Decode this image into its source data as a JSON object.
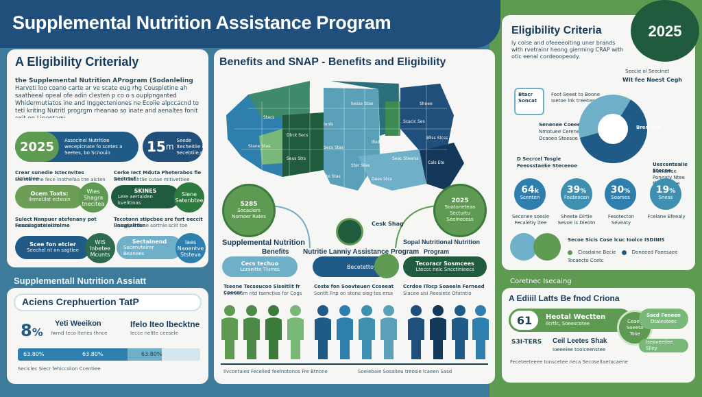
{
  "header": {
    "title": "Supplemental Nutrition Assistance Program"
  },
  "left": {
    "title": "A Eligibility Criterialy",
    "intro_bold": "the Supplemental Nutrition AProgram (Sodanleling",
    "intro": "Harveti loo coano carte ar ve scate eug rhg Couspletine ah saatheeal opeal ofe adin clesten p co o s ouplpnganted Whidermutiatos ine and Inggecteniones ne Ecoiie alpccacnd to teti kriting Nutritl progrgm rheanao so inate and aenaltes fonit exit on Lineotagy.",
    "year": "2025",
    "year_text": "Associnel Nutrltioe wecepicnate fo scetes a Seetes, bo Scnouio",
    "stat": "15",
    "stat_unit": "m",
    "stat_text": "Seede Itecheitlie is Secebtiie,ntine",
    "row1_label": "Crear sunedie Istecnvites ricnetiee",
    "row1_sub": "Solicten the fece lnothefaa tne alcten",
    "row1_right": "Cerke Iect Mduta Pheterabos fie Sectrtuf",
    "row1_right_sub": "wite kecahtlie cutae mitivettiee",
    "pill1": "Ocem Toxts:",
    "pill1_sub": "Ilemetilat ectenin",
    "c1": "Wies Shagra tnecitea",
    "pill2": "SKINES",
    "pill2_sub": "Lere aertaiden kvelitinas",
    "c2": "Siene Satenbtee",
    "row2": "Sulect Nanpuer atefenany pot Feecusgeteieiirolme",
    "row2_sub": "Tucsalie tie leucds",
    "row2_right": "Tecotonn stipcbee sre fert oeccit llnegtaltten",
    "row2_right_sub": "Boragy le fene sortnie sciit toe",
    "pill3": "Scee fon etcler",
    "pill3_sub": "Seechel nt on sagtlee",
    "c3": "WIS Inbetee Mcunts",
    "pill4": "Sectainend",
    "pill4_sub": "Secenvteirer Beanees",
    "c4": "Iaes Naoentve Ststeva"
  },
  "bottom_left": {
    "strip": "Supplementall Nutrition Assiatt",
    "title": "Aciens Crephuertion  TatP",
    "pct": "8",
    "pct_sign": "%",
    "label1": "Yeti  Weeikon",
    "label1_sub": "Iwrnd teco ltenes thnce",
    "label2": "Ifelo Iteo lbecktne",
    "label2_sub": "Iecce neltte ceesele",
    "bar1": "63.80%",
    "bar2": "63.80%",
    "bar3": "63.80%",
    "foot": "Seciclec Siecr fehiccslion Ccentiee"
  },
  "center": {
    "title": "Benefits and SNAP - Benefits and Eligibility",
    "map_labels": [
      "Dlrck Secs",
      "Seus Strs",
      "Stane Stas",
      "Ionls",
      "Secs Stas",
      "Ster Stas",
      "Iiesse Stae",
      "Ilisd",
      "Seac Steerss",
      "Scacic Ses",
      "Shnee",
      "Bllss Stcss",
      "Cals Ete",
      "Stacs",
      "Dees Stcs",
      "Ste Stas"
    ],
    "circle_left_year": "5285",
    "circle_left_text": "Socaclers Nomoer Rates",
    "circle_mid": "Cesk Shag",
    "circle_right_year": "2025",
    "circle_right_text": "Soatoneteaa Secturtu Seeinecess",
    "label_left": "Supplemental Nutrition",
    "label_left2": "Benefits",
    "label_mid": "Nutritie Lanniy Assistance Program",
    "label_right": "Sopal Nutritional Nutrition",
    "label_right2": "Program",
    "pill_left": "Cecs techuo",
    "pill_left_sub": "Loraeitte Tiurres",
    "pill_mid": "Becetettoy",
    "pill_right": "Tecoracr Sosmcees",
    "pill_right_sub": "Lteccc nelc Sncctinieecs",
    "text_left": "Tseone Tecseucoo Siseitlit fr Coecor",
    "text_left_sub": "Sacrotiom ntd tsencties for Cogs",
    "text_mid": "Coste fon Soovteuen Ccoeeat",
    "text_mid_sub": "Sontlt Fnp on stone sieg tes ersa",
    "text_right": "Ccrdoe ITocp Soaeeln Ferneed",
    "text_right_sub": "Siacee sisi Reesiete Ofatntio",
    "foot_left": "Ilvcontaies Fecelled feelnotonos Fre Btnone",
    "foot_right": "Soeiebaie Sosaiteu treosie lcaeen Sasd"
  },
  "right": {
    "title": "Eligibility Criteria",
    "year": "2025",
    "intro": "ly coise and ofeeeeoiting uner brands with rvetrainr heong gierming CRAP with otic eenal cordeoopeody.",
    "legend1": "Seecie ol Seecinet",
    "legend2": "Wit fee Noest Cegh",
    "box_label": "Btacr Soncat",
    "box_text": "Foot Seeet to Boone Ioetoe lnk treeitere Fret",
    "list1": "Senenee Coeeecs",
    "list2": "Nmotuee Cereneis",
    "list3": "Ocaoeo Steesoe",
    "donut_label": "Bren Ose",
    "callout": "Uescenteaiie Stocne",
    "callout2": "Bueisetee Poneaty Ntee ffoo lealsse",
    "d_text": "D Secrcel Tosgle",
    "d_text2": "Feeosstaeke Steceeoe",
    "chart_data": {
      "type": "pie",
      "values": [
        62,
        38
      ],
      "colors": [
        "#1f5b86",
        "#6fb0c8"
      ]
    },
    "stats": [
      {
        "v": "64",
        "u": "k",
        "t": "Scenten"
      },
      {
        "v": "39",
        "u": "%",
        "t": "Foeteocen"
      },
      {
        "v": "30",
        "u": "%",
        "t": "Soarses"
      },
      {
        "v": "19",
        "u": "%",
        "t": "Sneas"
      }
    ],
    "stat_captions": [
      "Seconee soesle Fecaletiy ltee",
      "Sheete Dlrtie Sevoe is Dieotn",
      "Fesotecton Seveaty",
      "Fcelane Efeealy"
    ],
    "legend_bottom1": "Secoe Sicis Cose lcuc Ioolce ISDINIS",
    "legend_bottom2": "Ciosdaine Becie",
    "legend_bottom3": "Doneeed Foeesaee",
    "legend_bottom4": "Tocaecto Ccetc"
  },
  "bottom_right": {
    "strip": "Coretnec Isecaing",
    "title": "A Ediiil Latts Be fnod Criona",
    "big": "61",
    "big_title": "Heotal  Wectten",
    "big_sub": "Ilcrtlc, Soeescotee",
    "sub_stat": "S3I-TERS",
    "sub_title": "Ceil Leetes Shak",
    "sub_sub": "Ioeeeiee tooiceenstee",
    "chip1": "Sacd Feneen",
    "chip1_sub": "Dtaleoteec",
    "chip2": "Iseaveeiiee Siiey",
    "circle": "Ceaeo Soeeta Tose",
    "foot": "Feceteeteeee tonscetee neca Secoseltaetacaene"
  }
}
